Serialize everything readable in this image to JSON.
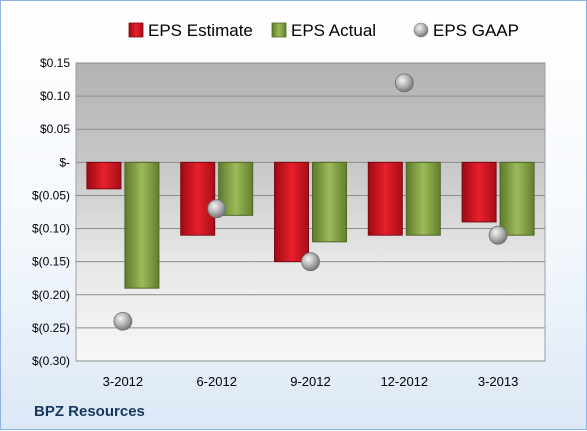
{
  "chart_data": {
    "type": "bar",
    "categories": [
      "3-2012",
      "6-2012",
      "9-2012",
      "12-2012",
      "3-2013"
    ],
    "series": [
      {
        "name": "EPS Estimate",
        "kind": "bar",
        "color": "#c0111f",
        "values": [
          -0.04,
          -0.11,
          -0.15,
          -0.11,
          -0.09
        ]
      },
      {
        "name": "EPS Actual",
        "kind": "bar",
        "color": "#77933c",
        "values": [
          -0.19,
          -0.08,
          -0.12,
          -0.11,
          -0.11
        ]
      },
      {
        "name": "EPS GAAP",
        "kind": "scatter",
        "color": "#a6a6a6",
        "values": [
          -0.24,
          -0.07,
          -0.15,
          0.12,
          -0.11
        ]
      }
    ],
    "ylim": [
      -0.3,
      0.15
    ],
    "yticks": [
      0.15,
      0.1,
      0.05,
      0,
      -0.05,
      -0.1,
      -0.15,
      -0.2,
      -0.25,
      -0.3
    ],
    "ytick_labels": [
      "$0.15",
      "$0.10",
      "$0.05",
      "$-",
      "$(0.05)",
      "$(0.10)",
      "$(0.15)",
      "$(0.20)",
      "$(0.25)",
      "$(0.30)"
    ],
    "grid": true,
    "legend_position": "top",
    "plot_background": "gradient grey",
    "footer": "BPZ Resources"
  }
}
